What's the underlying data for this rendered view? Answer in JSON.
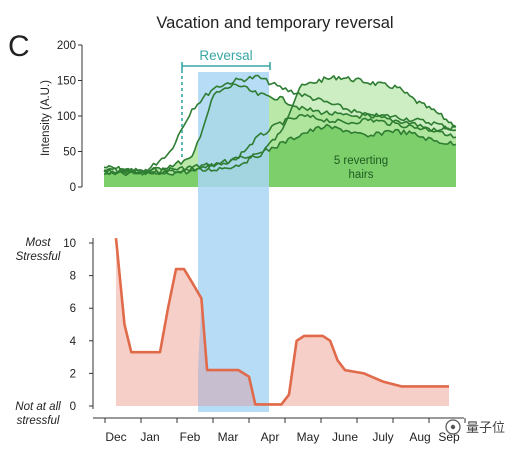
{
  "chart_data": [
    {
      "type": "line",
      "panel_letter": "C",
      "title": "Vacation and temporary reversal",
      "ylabel": "Intensity (A.U.)",
      "ylim": [
        0,
        200
      ],
      "yticks": [
        0,
        50,
        100,
        150,
        200
      ],
      "x_months": [
        "Dec",
        "Jan",
        "Feb",
        "Mar",
        "Apr",
        "May",
        "June",
        "July",
        "Aug",
        "Sep"
      ],
      "reversal_label": "Reversal",
      "reversal_window": [
        "Feb",
        "Apr"
      ],
      "annotation": [
        "5 reverting",
        "hairs"
      ],
      "colors": {
        "line": "#2e7d32",
        "fill_dark": "#7ccf6a",
        "fill_light": "#cdeec2",
        "reversal_text": "#3aa6a6",
        "highlight": "#a9d6f5"
      },
      "series": [
        {
          "x": [
            "Dec",
            "Dec",
            "Jan",
            "Jan",
            "Feb",
            "Feb",
            "Mar",
            "Mar",
            "Apr",
            "Apr",
            "May",
            "May",
            "June",
            "June",
            "July",
            "July",
            "Aug",
            "Aug",
            "Sep"
          ],
          "values": [
            28,
            25,
            22,
            24,
            26,
            30,
            32,
            40,
            48,
            75,
            140,
            150,
            155,
            150,
            145,
            140,
            120,
            105,
            85
          ]
        },
        {
          "x": [
            "Dec",
            "Jan",
            "Feb",
            "Feb",
            "Mar",
            "Mar",
            "Apr",
            "Apr",
            "May",
            "May",
            "June",
            "June",
            "July",
            "July",
            "Aug",
            "Aug",
            "Sep"
          ],
          "values": [
            25,
            22,
            24,
            50,
            110,
            140,
            150,
            155,
            140,
            130,
            120,
            110,
            100,
            100,
            95,
            90,
            80
          ]
        },
        {
          "x": [
            "Dec",
            "Jan",
            "Feb",
            "Feb",
            "Mar",
            "Mar",
            "Apr",
            "Apr",
            "May",
            "May",
            "June",
            "June",
            "July",
            "July",
            "Aug",
            "Aug",
            "Sep"
          ],
          "values": [
            22,
            20,
            22,
            30,
            40,
            130,
            145,
            130,
            125,
            110,
            105,
            100,
            100,
            95,
            90,
            80,
            70
          ]
        },
        {
          "x": [
            "Dec",
            "Jan",
            "Feb",
            "Feb",
            "Mar",
            "Mar",
            "Apr",
            "Apr",
            "May",
            "May",
            "June",
            "June",
            "July",
            "July",
            "Aug",
            "Aug",
            "Sep"
          ],
          "values": [
            20,
            18,
            20,
            22,
            25,
            30,
            40,
            70,
            90,
            100,
            95,
            90,
            95,
            90,
            85,
            80,
            85
          ]
        },
        {
          "x": [
            "Dec",
            "Jan",
            "Feb",
            "Feb",
            "Mar",
            "Mar",
            "Apr",
            "Apr",
            "May",
            "May",
            "June",
            "June",
            "July",
            "July",
            "Aug",
            "Aug",
            "Sep"
          ],
          "values": [
            18,
            20,
            18,
            20,
            22,
            25,
            30,
            45,
            60,
            75,
            85,
            80,
            70,
            80,
            75,
            65,
            60
          ]
        }
      ]
    },
    {
      "type": "area",
      "ylabel_top": [
        "Most",
        "Stressful"
      ],
      "ylabel_bottom": [
        "Not at all",
        "stressful"
      ],
      "ylim": [
        0,
        10
      ],
      "yticks": [
        0,
        2,
        4,
        6,
        8,
        10
      ],
      "categories": [
        "Dec",
        "Jan",
        "Feb",
        "Mar",
        "Apr",
        "May",
        "June",
        "July",
        "Aug",
        "Sep"
      ],
      "points": [
        [
          0.0,
          10.3
        ],
        [
          0.25,
          5.0
        ],
        [
          0.45,
          3.3
        ],
        [
          1.25,
          3.3
        ],
        [
          1.45,
          6.0
        ],
        [
          1.65,
          8.4
        ],
        [
          1.85,
          8.4
        ],
        [
          2.05,
          7.6
        ],
        [
          2.3,
          6.6
        ],
        [
          2.45,
          2.2
        ],
        [
          3.25,
          2.2
        ],
        [
          3.5,
          1.8
        ],
        [
          3.65,
          0.1
        ],
        [
          4.3,
          0.1
        ],
        [
          4.5,
          0.7
        ],
        [
          4.7,
          4.0
        ],
        [
          4.9,
          4.3
        ],
        [
          5.4,
          4.3
        ],
        [
          5.6,
          4.0
        ],
        [
          5.8,
          2.8
        ],
        [
          6.0,
          2.2
        ],
        [
          6.5,
          2.0
        ],
        [
          7.0,
          1.5
        ],
        [
          7.5,
          1.2
        ],
        [
          8.0,
          1.2
        ],
        [
          9.0,
          1.2
        ],
        [
          9.35,
          1.2
        ]
      ],
      "colors": {
        "line": "#e06a4a",
        "fill": "#f6cfc8",
        "overlap": "#c2bcd0"
      }
    }
  ],
  "watermark": "量子位"
}
